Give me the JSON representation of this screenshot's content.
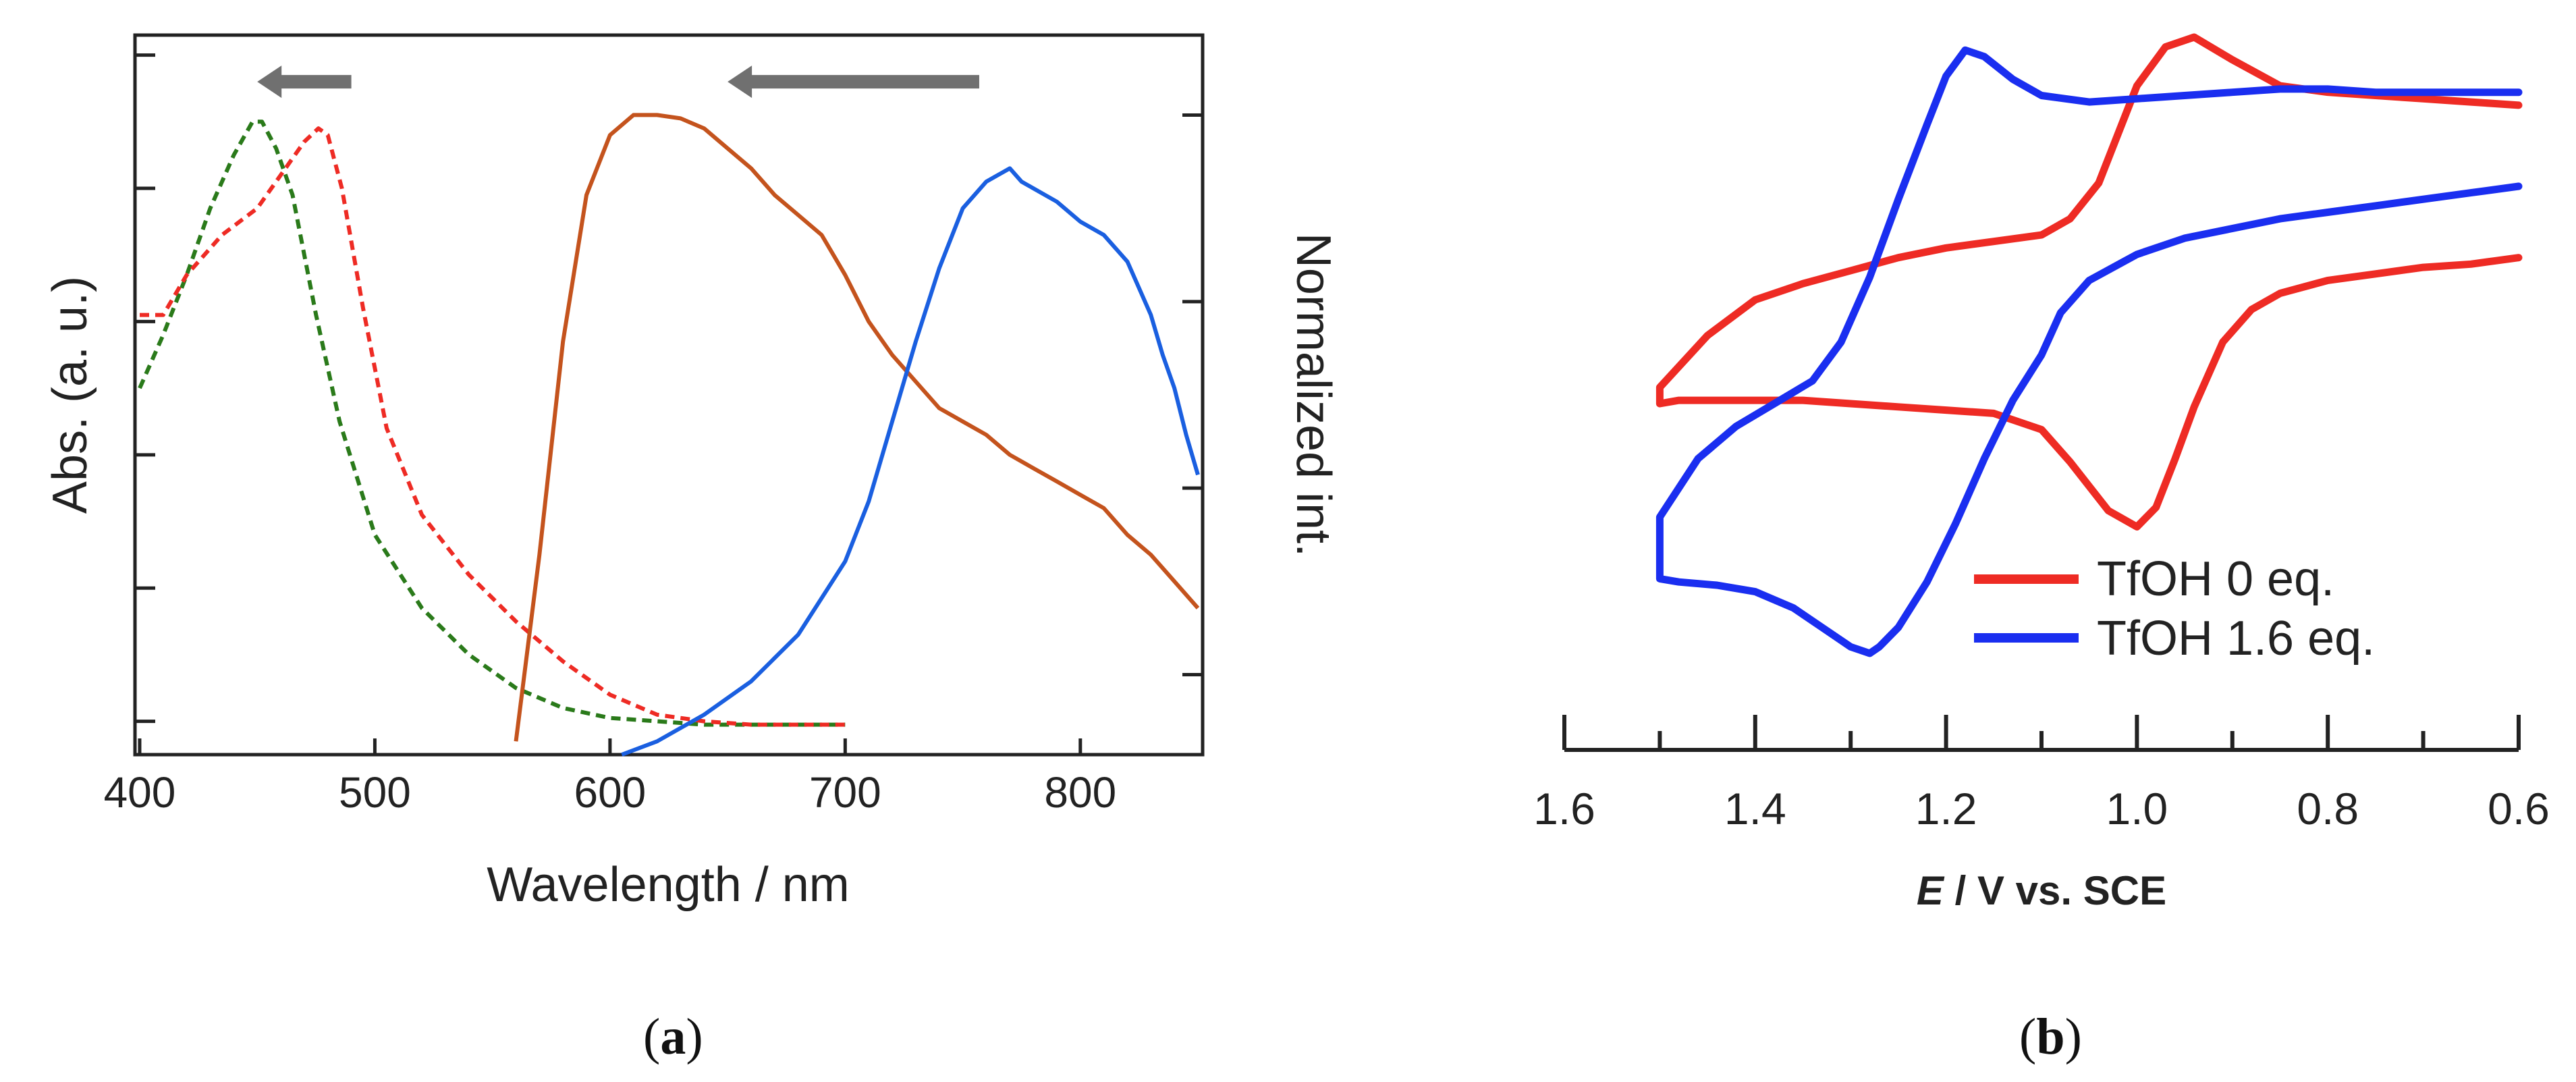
{
  "chart_data": [
    {
      "panel": "a",
      "panel_label": {
        "open": "(",
        "letter": "a",
        "close": ")"
      },
      "type": "line",
      "xlabel": "Wavelength / nm",
      "ylabel_left": "Abs. (a. u.)",
      "ylabel_right": "Normalized int.",
      "xlim": [
        398,
        852
      ],
      "ylim": [
        0,
        1.08
      ],
      "xticks": [
        400,
        500,
        600,
        700,
        800
      ],
      "xtick_labels": [
        "400",
        "500",
        "600",
        "700",
        "800"
      ],
      "left_yticks": [
        0.05,
        0.25,
        0.45,
        0.65,
        0.85,
        1.05
      ],
      "right_yticks": [
        0.12,
        0.4,
        0.68,
        0.96
      ],
      "series": [
        {
          "name": "absorption-green",
          "style": "dashed",
          "color": "#2a7a1a",
          "x": [
            400,
            410,
            420,
            430,
            440,
            448,
            452,
            458,
            465,
            475,
            485,
            500,
            520,
            540,
            560,
            580,
            600,
            620,
            640,
            660,
            680,
            700
          ],
          "y": [
            0.55,
            0.63,
            0.72,
            0.82,
            0.9,
            0.95,
            0.95,
            0.91,
            0.84,
            0.66,
            0.5,
            0.33,
            0.22,
            0.15,
            0.1,
            0.07,
            0.055,
            0.05,
            0.045,
            0.045,
            0.045,
            0.045
          ]
        },
        {
          "name": "absorption-red",
          "style": "dashed",
          "color": "#ee2b24",
          "x": [
            400,
            410,
            420,
            435,
            450,
            462,
            470,
            476,
            480,
            486,
            495,
            505,
            520,
            540,
            560,
            580,
            600,
            620,
            640,
            660,
            680,
            700
          ],
          "y": [
            0.66,
            0.66,
            0.72,
            0.78,
            0.82,
            0.88,
            0.92,
            0.94,
            0.93,
            0.85,
            0.67,
            0.49,
            0.36,
            0.27,
            0.2,
            0.14,
            0.09,
            0.06,
            0.05,
            0.045,
            0.045,
            0.045
          ]
        },
        {
          "name": "emission-orange",
          "style": "solid",
          "color": "#c4531d",
          "x": [
            560,
            570,
            580,
            590,
            600,
            610,
            620,
            630,
            640,
            650,
            660,
            670,
            680,
            690,
            700,
            710,
            720,
            730,
            740,
            750,
            760,
            770,
            780,
            790,
            800,
            810,
            820,
            830,
            840,
            850
          ],
          "y": [
            0.02,
            0.3,
            0.62,
            0.84,
            0.93,
            0.96,
            0.96,
            0.955,
            0.94,
            0.91,
            0.88,
            0.84,
            0.81,
            0.78,
            0.72,
            0.65,
            0.6,
            0.56,
            0.52,
            0.5,
            0.48,
            0.45,
            0.43,
            0.41,
            0.39,
            0.37,
            0.33,
            0.3,
            0.26,
            0.22
          ]
        },
        {
          "name": "emission-blue",
          "style": "solid",
          "color": "#1a5fe0",
          "x": [
            605,
            620,
            640,
            660,
            680,
            700,
            710,
            720,
            730,
            740,
            750,
            760,
            765,
            770,
            775,
            780,
            790,
            800,
            810,
            820,
            830,
            835,
            840,
            845,
            850
          ],
          "y": [
            0.0,
            0.02,
            0.06,
            0.11,
            0.18,
            0.29,
            0.38,
            0.5,
            0.62,
            0.73,
            0.82,
            0.86,
            0.87,
            0.88,
            0.86,
            0.85,
            0.83,
            0.8,
            0.78,
            0.74,
            0.66,
            0.6,
            0.55,
            0.48,
            0.42
          ]
        }
      ],
      "annotations": [
        {
          "type": "arrow",
          "color": "#707070",
          "from": [
            490,
            1.01
          ],
          "to": [
            450,
            1.01
          ]
        },
        {
          "type": "arrow",
          "color": "#707070",
          "from": [
            757,
            1.01
          ],
          "to": [
            650,
            1.01
          ]
        }
      ]
    },
    {
      "panel": "b",
      "panel_label": {
        "open": "(",
        "letter": "b",
        "close": ")"
      },
      "type": "line",
      "xlabel": {
        "italic": "E",
        "rest": " / V vs. SCE"
      },
      "xlim": [
        1.6,
        0.6
      ],
      "ylim": [
        -1.05,
        1.0
      ],
      "xticks": [
        1.6,
        1.4,
        1.2,
        1.0,
        0.8,
        0.6
      ],
      "xtick_labels": [
        "1.6",
        "1.4",
        "1.2",
        "1.0",
        "0.8",
        "0.6"
      ],
      "minor_xticks": [
        1.5,
        1.3,
        1.1,
        0.9,
        0.7
      ],
      "legend_location": "lower-right",
      "series": [
        {
          "name": "TfOH 0 eq.",
          "color": "#ee2b24",
          "x": [
            0.6,
            0.65,
            0.7,
            0.75,
            0.8,
            0.85,
            0.88,
            0.91,
            0.94,
            0.96,
            0.98,
            1.0,
            1.03,
            1.07,
            1.1,
            1.15,
            1.2,
            1.25,
            1.3,
            1.35,
            1.4,
            1.45,
            1.48,
            1.5,
            1.5,
            1.45,
            1.4,
            1.35,
            1.3,
            1.25,
            1.2,
            1.15,
            1.1,
            1.07,
            1.04,
            1.02,
            1.0,
            0.97,
            0.94,
            0.9,
            0.85,
            0.8,
            0.75,
            0.7,
            0.65,
            0.6
          ],
          "y": [
            0.32,
            0.3,
            0.29,
            0.27,
            0.25,
            0.21,
            0.16,
            0.06,
            -0.14,
            -0.3,
            -0.45,
            -0.51,
            -0.46,
            -0.31,
            -0.21,
            -0.16,
            -0.15,
            -0.14,
            -0.13,
            -0.12,
            -0.12,
            -0.12,
            -0.12,
            -0.13,
            -0.08,
            0.08,
            0.19,
            0.24,
            0.28,
            0.32,
            0.35,
            0.37,
            0.39,
            0.44,
            0.55,
            0.7,
            0.85,
            0.97,
            1.0,
            0.93,
            0.85,
            0.83,
            0.82,
            0.81,
            0.8,
            0.79
          ]
        },
        {
          "name": "TfOH 1.6 eq.",
          "color": "#1a2ef0",
          "x": [
            0.6,
            0.65,
            0.7,
            0.75,
            0.8,
            0.85,
            0.9,
            0.95,
            1.0,
            1.05,
            1.08,
            1.1,
            1.13,
            1.16,
            1.19,
            1.22,
            1.25,
            1.27,
            1.28,
            1.3,
            1.33,
            1.36,
            1.4,
            1.44,
            1.48,
            1.5,
            1.5,
            1.46,
            1.42,
            1.38,
            1.34,
            1.31,
            1.28,
            1.25,
            1.22,
            1.2,
            1.18,
            1.16,
            1.13,
            1.1,
            1.05,
            1.0,
            0.95,
            0.9,
            0.85,
            0.8,
            0.75,
            0.7,
            0.65,
            0.6
          ],
          "y": [
            0.54,
            0.52,
            0.5,
            0.48,
            0.46,
            0.44,
            0.41,
            0.38,
            0.33,
            0.25,
            0.15,
            0.02,
            -0.12,
            -0.3,
            -0.5,
            -0.68,
            -0.82,
            -0.88,
            -0.9,
            -0.88,
            -0.82,
            -0.76,
            -0.71,
            -0.69,
            -0.68,
            -0.67,
            -0.48,
            -0.3,
            -0.2,
            -0.13,
            -0.06,
            0.06,
            0.26,
            0.5,
            0.73,
            0.88,
            0.96,
            0.94,
            0.87,
            0.82,
            0.8,
            0.81,
            0.82,
            0.83,
            0.84,
            0.84,
            0.83,
            0.83,
            0.83,
            0.83
          ]
        }
      ]
    }
  ]
}
